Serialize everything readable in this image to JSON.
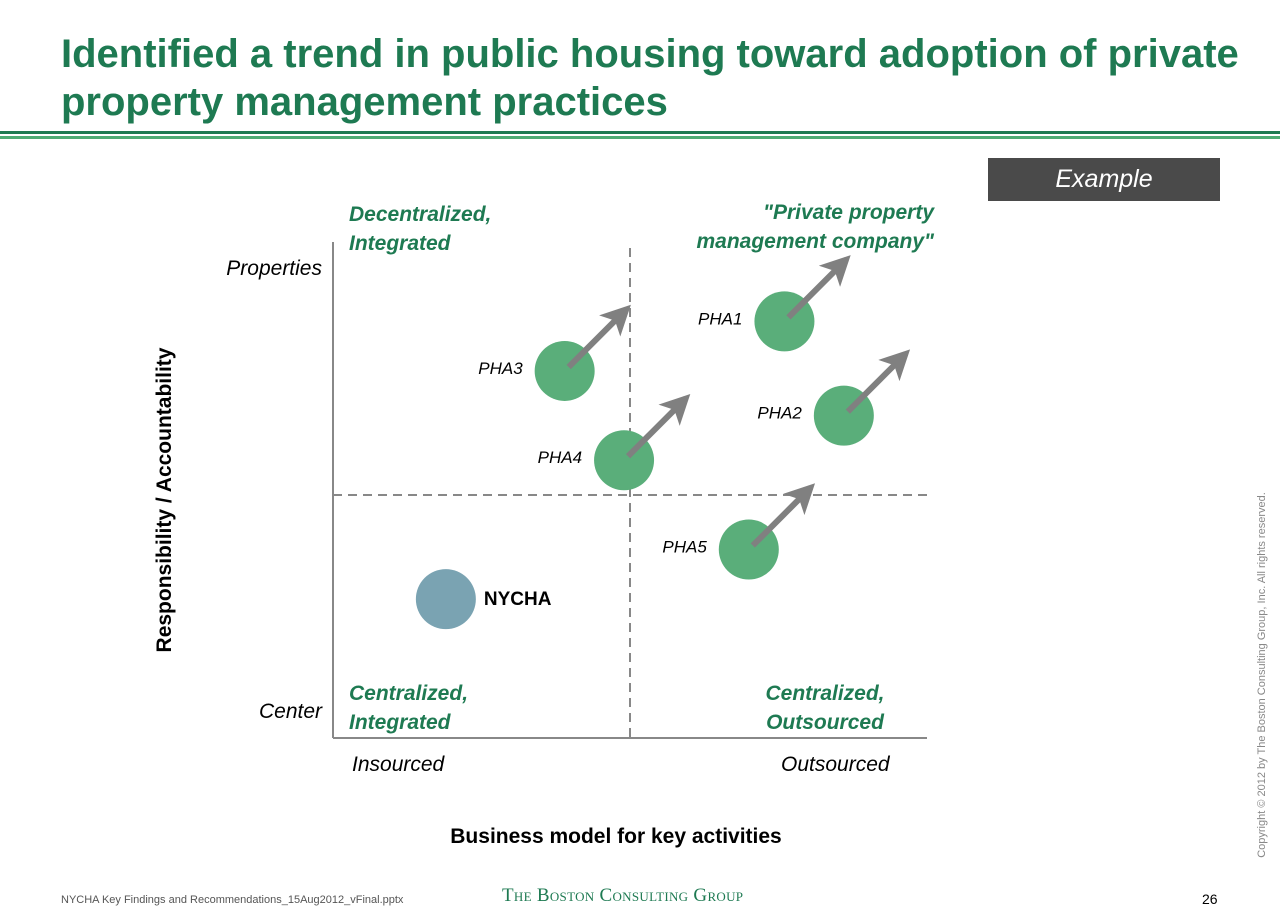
{
  "header": {
    "title": "Identified a trend in public housing toward adoption of private property management practices",
    "badge": "Example"
  },
  "chart_data": {
    "type": "scatter",
    "xlabel": "Business model for key activities",
    "ylabel": "Responsibility / Accountability",
    "x_ends": [
      "Insourced",
      "Outsourced"
    ],
    "y_ends": [
      "Center",
      "Properties"
    ],
    "quadrants": {
      "top_left": "Decentralized,\nIntegrated",
      "top_right": "\"Private property\nmanagement company\"",
      "bottom_left": "Centralized,\nIntegrated",
      "bottom_right": "Centralized,\nOutsourced"
    },
    "xlim": [
      0,
      1
    ],
    "ylim": [
      0,
      1
    ],
    "points": [
      {
        "label": "PHA1",
        "x": 0.76,
        "y": 0.84,
        "color": "#5aae7a",
        "arrow": true
      },
      {
        "label": "PHA2",
        "x": 0.86,
        "y": 0.65,
        "color": "#5aae7a",
        "arrow": true
      },
      {
        "label": "PHA3",
        "x": 0.39,
        "y": 0.74,
        "color": "#5aae7a",
        "arrow": true
      },
      {
        "label": "PHA4",
        "x": 0.49,
        "y": 0.56,
        "color": "#5aae7a",
        "arrow": true
      },
      {
        "label": "PHA5",
        "x": 0.7,
        "y": 0.38,
        "color": "#5aae7a",
        "arrow": true
      },
      {
        "label": "NYCHA",
        "x": 0.19,
        "y": 0.28,
        "color": "#7aa3b2",
        "arrow": false
      }
    ],
    "divider_x": 0.5,
    "divider_y": 0.49
  },
  "footer": {
    "file": "NYCHA Key Findings and Recommendations_15Aug2012_vFinal.pptx",
    "brand": "The Boston Consulting Group",
    "page": "26",
    "copyright": "Copyright © 2012 by The Boston Consulting Group, Inc. All rights reserved."
  },
  "colors": {
    "accent": "#1e7a52",
    "accent_light": "#4dab74",
    "pha_bubble": "#5aae7a",
    "nycha_bubble": "#7aa3b2",
    "arrow": "#808080",
    "badge_bg": "#4a4a4a"
  }
}
